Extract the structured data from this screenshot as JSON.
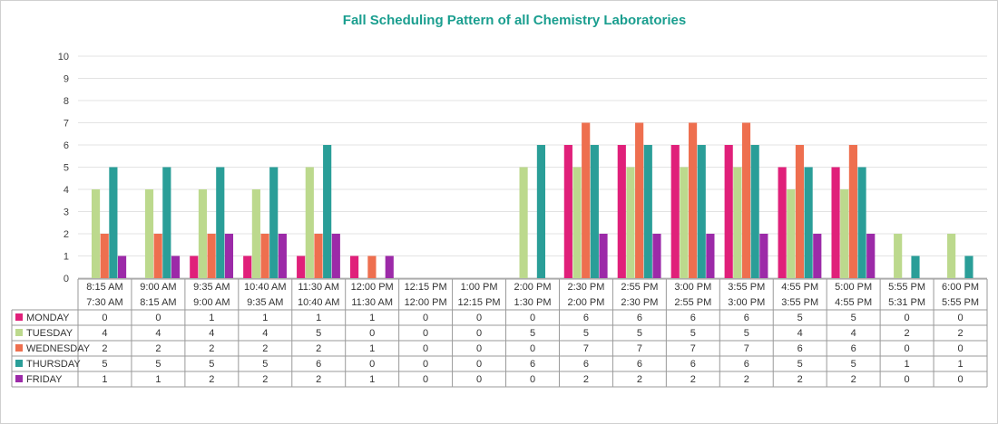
{
  "chart_data": {
    "type": "bar",
    "title": "Fall Scheduling Pattern of all Chemistry Laboratories",
    "xlabel": "",
    "ylabel": "",
    "ylim": [
      0,
      10
    ],
    "yticks": [
      "0",
      "1",
      "2",
      "3",
      "4",
      "5",
      "6",
      "7",
      "8",
      "9",
      "10"
    ],
    "grid": true,
    "legend": "table-left",
    "categories": [
      [
        "8:15 AM",
        "7:30 AM"
      ],
      [
        "9:00 AM",
        "8:15 AM"
      ],
      [
        "9:35 AM",
        "9:00 AM"
      ],
      [
        "10:40 AM",
        "9:35 AM"
      ],
      [
        "11:30 AM",
        "10:40 AM"
      ],
      [
        "12:00 PM",
        "11:30 AM"
      ],
      [
        "12:15 PM",
        "12:00 PM"
      ],
      [
        "1:00 PM",
        "12:15 PM"
      ],
      [
        "2:00 PM",
        "1:30 PM"
      ],
      [
        "2:30 PM",
        "2:00 PM"
      ],
      [
        "2:55 PM",
        "2:30 PM"
      ],
      [
        "3:00 PM",
        "2:55 PM"
      ],
      [
        "3:55 PM",
        "3:00 PM"
      ],
      [
        "4:55 PM",
        "3:55 PM"
      ],
      [
        "5:00 PM",
        "4:55 PM"
      ],
      [
        "5:55 PM",
        "5:31 PM"
      ],
      [
        "6:00 PM",
        "5:55 PM"
      ]
    ],
    "series": [
      {
        "name": "MONDAY",
        "color": "#e0207a",
        "values": [
          0,
          0,
          1,
          1,
          1,
          1,
          0,
          0,
          0,
          6,
          6,
          6,
          6,
          5,
          5,
          0,
          0
        ]
      },
      {
        "name": "TUESDAY",
        "color": "#bcd98d",
        "values": [
          4,
          4,
          4,
          4,
          5,
          0,
          0,
          0,
          5,
          5,
          5,
          5,
          5,
          4,
          4,
          2,
          2
        ]
      },
      {
        "name": "WEDNESDAY",
        "color": "#ee6f4f",
        "values": [
          2,
          2,
          2,
          2,
          2,
          1,
          0,
          0,
          0,
          7,
          7,
          7,
          7,
          6,
          6,
          0,
          0
        ]
      },
      {
        "name": "THURSDAY",
        "color": "#2a9e98",
        "values": [
          5,
          5,
          5,
          5,
          6,
          0,
          0,
          0,
          6,
          6,
          6,
          6,
          6,
          5,
          5,
          1,
          1
        ]
      },
      {
        "name": "FRIDAY",
        "color": "#9c2aa8",
        "values": [
          1,
          1,
          2,
          2,
          2,
          1,
          0,
          0,
          0,
          2,
          2,
          2,
          2,
          2,
          2,
          0,
          0
        ]
      }
    ]
  }
}
